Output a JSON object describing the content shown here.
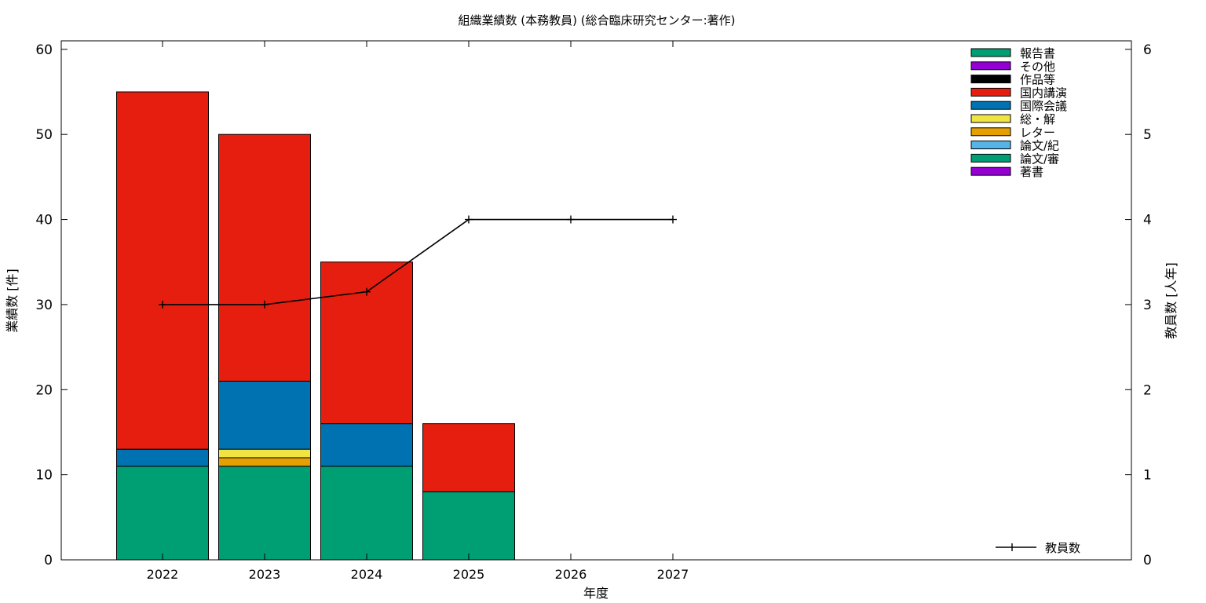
{
  "chart_data": {
    "type": "bar",
    "title": "組織業績数 (本務教員) (総合臨床研究センター:著作)",
    "xlabel": "年度",
    "ylabel": "業績数 [件]",
    "y2label": "教員数 [人年]",
    "categories": [
      "2022",
      "2023",
      "2024",
      "2025",
      "2026",
      "2027"
    ],
    "ylim": [
      0,
      61
    ],
    "y2lim": [
      0,
      6.1
    ],
    "yticks": [
      0,
      10,
      20,
      30,
      40,
      50,
      60
    ],
    "y2ticks": [
      0,
      1,
      2,
      3,
      4,
      5,
      6
    ],
    "stacked": true,
    "grid": false,
    "legend_position": "top-right",
    "series": [
      {
        "name": "著書",
        "color": "#9400d3",
        "values": [
          0,
          0,
          0,
          0,
          0,
          0
        ]
      },
      {
        "name": "論文/審",
        "color": "#009e73",
        "values": [
          11,
          11,
          11,
          8,
          0,
          0
        ]
      },
      {
        "name": "論文/紀",
        "color": "#56b4e9",
        "values": [
          0,
          0,
          0,
          0,
          0,
          0
        ]
      },
      {
        "name": "レター",
        "color": "#e69f00",
        "values": [
          0,
          1,
          0,
          0,
          0,
          0
        ]
      },
      {
        "name": "総・解",
        "color": "#f0e442",
        "values": [
          0,
          1,
          0,
          0,
          0,
          0
        ]
      },
      {
        "name": "国際会議",
        "color": "#0072b2",
        "values": [
          2,
          8,
          5,
          0,
          0,
          0
        ]
      },
      {
        "name": "国内講演",
        "color": "#e51e10",
        "values": [
          42,
          29,
          19,
          8,
          0,
          0
        ]
      },
      {
        "name": "作品等",
        "color": "#000000",
        "values": [
          0,
          0,
          0,
          0,
          0,
          0
        ]
      },
      {
        "name": "その他",
        "color": "#9400d3",
        "values": [
          0,
          0,
          0,
          0,
          0,
          0
        ]
      },
      {
        "name": "報告書",
        "color": "#009e73",
        "values": [
          0,
          0,
          0,
          0,
          0,
          0
        ]
      }
    ],
    "line_series": {
      "name": "教員数",
      "axis": "y2",
      "color": "#000000",
      "x": [
        "2022",
        "2023",
        "2024",
        "2025",
        "2026",
        "2027"
      ],
      "values": [
        3.0,
        3.0,
        3.15,
        4.0,
        4.0,
        4.0
      ]
    }
  }
}
